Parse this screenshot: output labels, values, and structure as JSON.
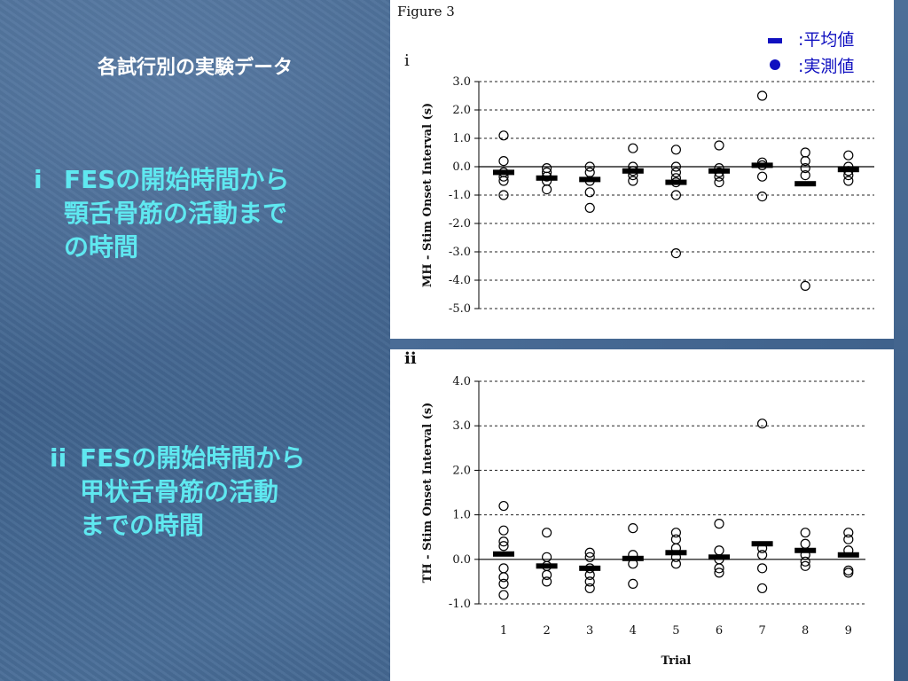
{
  "slide": {
    "title": "各試行別の実験データ",
    "block_i": {
      "marker": "i",
      "text": "FESの開始時間から\n顎舌骨筋の活動まで\nの時間"
    },
    "block_ii": {
      "marker": "ii",
      "text": "FESの開始時間から\n甲状舌骨筋の活動\nまでの時間"
    }
  },
  "figure": {
    "title": "Figure 3",
    "legend": {
      "mean_label": ":平均値",
      "observed_label": ":実測値",
      "color": "#1010c0"
    }
  },
  "chart_data": [
    {
      "type": "scatter",
      "panel_label": "i",
      "title": "",
      "xlabel": "",
      "ylabel": "MH - Stim Onset Interval (s)",
      "ylim": [
        -5.0,
        3.0
      ],
      "yticks": [
        "3.0",
        "2.0",
        "1.0",
        "0.0",
        "-1.0",
        "-2.0",
        "-3.0",
        "-4.0",
        "-5.0"
      ],
      "grid": "dashed horizontal",
      "categories": [
        "1",
        "2",
        "3",
        "4",
        "5",
        "6",
        "7",
        "8",
        "9"
      ],
      "show_x_tick_labels": false,
      "means": [
        -0.2,
        -0.4,
        -0.45,
        -0.15,
        -0.55,
        -0.15,
        0.05,
        -0.6,
        -0.1
      ],
      "points": [
        [
          1.1,
          0.2,
          -0.2,
          -0.35,
          -0.5,
          -1.0
        ],
        [
          -0.05,
          -0.2,
          -0.35,
          -0.5,
          -0.8
        ],
        [
          0.0,
          -0.2,
          -0.5,
          -0.9,
          -1.45
        ],
        [
          0.65,
          0.0,
          -0.15,
          -0.3,
          -0.5
        ],
        [
          0.6,
          0.0,
          -0.2,
          -0.4,
          -0.55,
          -1.0,
          -3.05
        ],
        [
          0.75,
          -0.05,
          -0.2,
          -0.35,
          -0.55
        ],
        [
          2.5,
          0.15,
          0.05,
          -0.35,
          -1.05
        ],
        [
          0.5,
          0.2,
          -0.05,
          -0.3,
          -4.2
        ],
        [
          0.4,
          0.0,
          -0.15,
          -0.3,
          -0.5
        ]
      ]
    },
    {
      "type": "scatter",
      "panel_label": "ii",
      "title": "",
      "xlabel": "Trial",
      "ylabel": "TH - Stim Onset Interval (s)",
      "ylim": [
        -1.0,
        4.0
      ],
      "yticks": [
        "4.0",
        "3.0",
        "2.0",
        "1.0",
        "0.0",
        "-1.0"
      ],
      "grid": "dashed horizontal",
      "categories": [
        "1",
        "2",
        "3",
        "4",
        "5",
        "6",
        "7",
        "8",
        "9"
      ],
      "show_x_tick_labels": true,
      "means": [
        0.12,
        -0.15,
        -0.2,
        0.02,
        0.15,
        0.05,
        0.35,
        0.2,
        0.1
      ],
      "points": [
        [
          1.2,
          0.65,
          0.4,
          0.3,
          -0.2,
          -0.4,
          -0.55,
          -0.8
        ],
        [
          0.6,
          0.05,
          -0.15,
          -0.35,
          -0.5
        ],
        [
          0.15,
          0.05,
          -0.2,
          -0.35,
          -0.5,
          -0.65
        ],
        [
          0.7,
          0.1,
          -0.1,
          -0.55
        ],
        [
          0.6,
          0.45,
          0.25,
          0.05,
          -0.1
        ],
        [
          0.8,
          0.2,
          0.0,
          -0.2,
          -0.3
        ],
        [
          3.05,
          0.25,
          0.1,
          -0.2,
          -0.65
        ],
        [
          0.6,
          0.35,
          0.1,
          -0.05,
          -0.15
        ],
        [
          0.6,
          0.45,
          0.2,
          -0.25,
          -0.3
        ]
      ]
    }
  ]
}
